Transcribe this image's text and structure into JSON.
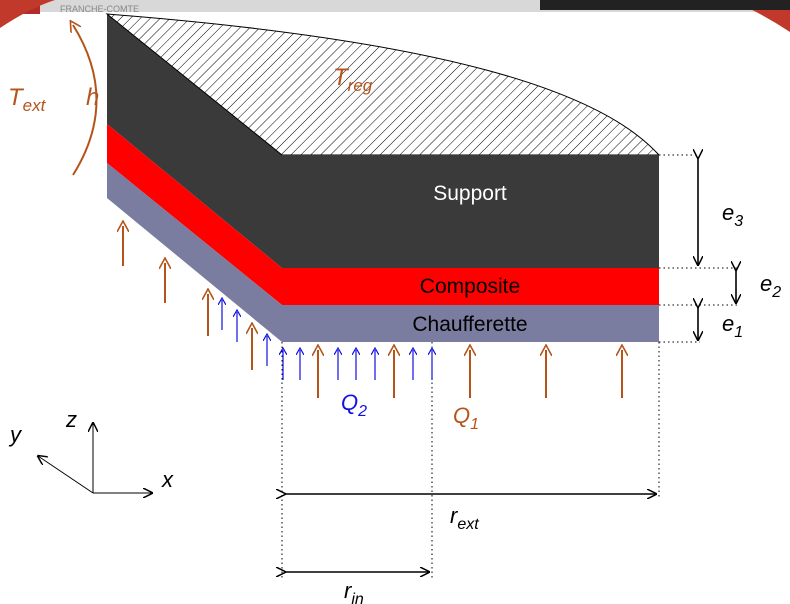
{
  "colors": {
    "support": "#3a3a3a",
    "composite": "#ff0000",
    "chaufferette": "#7a7ca0",
    "heat_label": "#b5541a",
    "q2_color": "#1010e0",
    "dim_line": "#000000"
  },
  "layers": {
    "support": "Support",
    "composite": "Composite",
    "chaufferette": "Chaufferette"
  },
  "labels": {
    "t_reg_main": "T",
    "t_reg_sub": "reg",
    "t_ext_main": "T",
    "t_ext_sub": "ext",
    "h": "h",
    "q1_main": "Q",
    "q1_sub": "1",
    "q2_main": "Q",
    "q2_sub": "2",
    "e1_main": "e",
    "e1_sub": "1",
    "e2_main": "e",
    "e2_sub": "2",
    "e3_main": "e",
    "e3_sub": "3",
    "r_ext_main": "r",
    "r_ext_sub": "ext",
    "r_in_main": "r",
    "r_in_sub": "in"
  },
  "axes": {
    "x": "x",
    "y": "y",
    "z": "z"
  },
  "header_fragment": "FRANCHE-COMTE"
}
